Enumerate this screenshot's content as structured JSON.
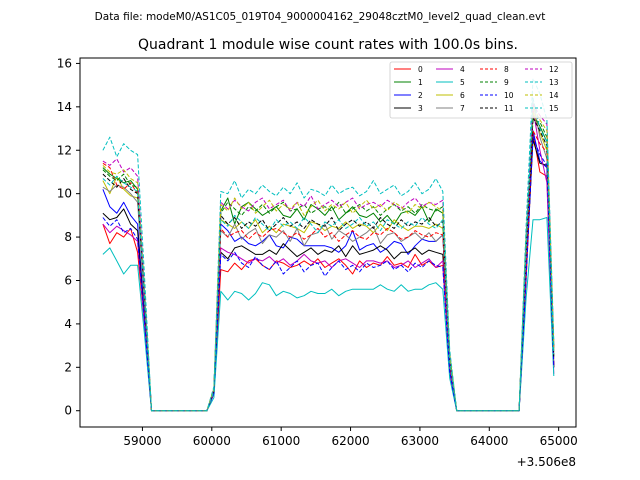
{
  "header_note": "Data file: modeM0/AS1C05_019T04_9000004162_29048cztM0_level2_quad_clean.evt",
  "chart_data": {
    "type": "line",
    "title": "Quadrant 1 module wise count rates with 100.0s bins.",
    "xlabel": "",
    "ylabel": "",
    "x_offset_label": "+3.506e8",
    "xlim": [
      58100,
      65250
    ],
    "ylim": [
      -0.75,
      16.25
    ],
    "x_ticks": [
      59000,
      60000,
      61000,
      62000,
      63000,
      64000,
      65000
    ],
    "x_tick_labels": [
      "59000",
      "60000",
      "61000",
      "62000",
      "63000",
      "64000",
      "65000"
    ],
    "y_ticks": [
      0,
      2,
      4,
      6,
      8,
      10,
      12,
      14,
      16
    ],
    "y_tick_labels": [
      "0",
      "2",
      "4",
      "6",
      "8",
      "10",
      "12",
      "14",
      "16"
    ],
    "grid": false,
    "legend_position": "top-right",
    "x": [
      58430,
      58530,
      58630,
      58730,
      58830,
      58930,
      59030,
      59130,
      59230,
      59330,
      59430,
      59530,
      59630,
      59730,
      59830,
      59930,
      60030,
      60130,
      60230,
      60330,
      60430,
      60530,
      60630,
      60730,
      60830,
      60930,
      61030,
      61130,
      61230,
      61330,
      61430,
      61530,
      61630,
      61730,
      61830,
      61930,
      62030,
      62130,
      62230,
      62330,
      62430,
      62530,
      62630,
      62730,
      62830,
      62930,
      63030,
      63130,
      63230,
      63330,
      63430,
      63530,
      63630,
      63730,
      63830,
      63930,
      64030,
      64130,
      64230,
      64330,
      64430,
      64530,
      64630,
      64730,
      64830,
      64930
    ],
    "series": [
      {
        "name": "0",
        "color": "#ff0000",
        "dash": false,
        "values": [
          8.6,
          7.7,
          8.2,
          8.0,
          8.4,
          7.3,
          4.0,
          0.0,
          0.0,
          0.0,
          0.0,
          0.0,
          0.0,
          0.0,
          0.0,
          0.0,
          0.8,
          6.5,
          6.4,
          6.8,
          6.5,
          6.9,
          7.0,
          6.7,
          6.5,
          6.9,
          6.8,
          6.6,
          6.7,
          6.9,
          6.7,
          7.0,
          6.6,
          6.8,
          7.0,
          6.7,
          6.3,
          6.9,
          6.6,
          6.8,
          6.7,
          7.1,
          6.7,
          6.8,
          6.6,
          7.2,
          6.7,
          6.9,
          6.6,
          6.7,
          1.8,
          0.0,
          0.0,
          0.0,
          0.0,
          0.0,
          0.0,
          0.0,
          0.0,
          0.0,
          0.0,
          6.0,
          12.8,
          11.0,
          10.8,
          2.0
        ]
      },
      {
        "name": "1",
        "color": "#008000",
        "dash": false,
        "values": [
          11.2,
          10.9,
          10.7,
          10.5,
          10.6,
          10.2,
          5.5,
          0.0,
          0.0,
          0.0,
          0.0,
          0.0,
          0.0,
          0.0,
          0.0,
          0.0,
          1.0,
          9.2,
          9.8,
          8.6,
          9.4,
          9.6,
          9.3,
          9.0,
          9.2,
          9.4,
          9.0,
          8.9,
          9.3,
          8.8,
          9.5,
          9.3,
          9.0,
          9.4,
          8.8,
          9.1,
          9.4,
          9.0,
          8.9,
          9.1,
          8.7,
          9.0,
          8.6,
          9.1,
          9.2,
          9.0,
          9.4,
          8.7,
          9.3,
          9.1,
          2.6,
          0.0,
          0.0,
          0.0,
          0.0,
          0.0,
          0.0,
          0.0,
          0.0,
          0.0,
          0.0,
          8.0,
          13.6,
          13.1,
          12.4,
          3.0
        ]
      },
      {
        "name": "2",
        "color": "#0000ff",
        "dash": false,
        "values": [
          10.2,
          9.4,
          9.1,
          9.6,
          9.0,
          8.6,
          4.4,
          0.0,
          0.0,
          0.0,
          0.0,
          0.0,
          0.0,
          0.0,
          0.0,
          0.0,
          0.9,
          8.6,
          8.3,
          7.8,
          8.0,
          7.7,
          7.6,
          7.8,
          8.1,
          7.6,
          7.5,
          8.0,
          7.9,
          7.6,
          7.6,
          7.6,
          7.6,
          7.5,
          7.3,
          7.6,
          8.3,
          7.4,
          7.6,
          7.7,
          7.3,
          7.5,
          7.8,
          7.7,
          7.2,
          7.6,
          7.9,
          7.8,
          7.8,
          8.1,
          2.0,
          0.0,
          0.0,
          0.0,
          0.0,
          0.0,
          0.0,
          0.0,
          0.0,
          0.0,
          0.0,
          6.8,
          12.9,
          11.5,
          11.2,
          2.1
        ]
      },
      {
        "name": "3",
        "color": "#000000",
        "dash": false,
        "values": [
          9.1,
          8.8,
          8.9,
          9.3,
          8.6,
          8.3,
          4.2,
          0.0,
          0.0,
          0.0,
          0.0,
          0.0,
          0.0,
          0.0,
          0.0,
          0.0,
          0.8,
          7.3,
          7.0,
          7.5,
          7.6,
          7.4,
          7.2,
          7.2,
          7.4,
          7.2,
          7.7,
          7.4,
          7.1,
          7.3,
          7.5,
          7.2,
          7.4,
          7.3,
          7.6,
          7.1,
          7.6,
          7.2,
          7.3,
          7.4,
          7.6,
          7.4,
          7.0,
          7.3,
          7.3,
          7.5,
          7.2,
          7.4,
          7.3,
          7.2,
          1.9,
          0.0,
          0.0,
          0.0,
          0.0,
          0.0,
          0.0,
          0.0,
          0.0,
          0.0,
          0.0,
          6.4,
          12.5,
          11.4,
          11.3,
          2.0
        ]
      },
      {
        "name": "4",
        "color": "#bf00bf",
        "dash": false,
        "values": [
          8.6,
          8.2,
          8.5,
          8.3,
          8.1,
          7.8,
          4.0,
          0.0,
          0.0,
          0.0,
          0.0,
          0.0,
          0.0,
          0.0,
          0.0,
          0.0,
          0.8,
          7.5,
          7.3,
          7.2,
          7.0,
          6.8,
          7.0,
          6.9,
          7.1,
          6.8,
          7.0,
          6.7,
          6.9,
          7.2,
          6.9,
          6.8,
          6.9,
          6.6,
          6.9,
          7.0,
          6.8,
          6.6,
          6.9,
          6.9,
          6.8,
          6.9,
          6.6,
          6.7,
          6.9,
          6.6,
          6.8,
          7.0,
          6.6,
          6.9,
          1.8,
          0.0,
          0.0,
          0.0,
          0.0,
          0.0,
          0.0,
          0.0,
          0.0,
          0.0,
          0.0,
          6.2,
          13.9,
          12.0,
          10.5,
          1.7
        ]
      },
      {
        "name": "5",
        "color": "#00bfbf",
        "dash": false,
        "values": [
          7.2,
          7.5,
          6.9,
          6.3,
          6.7,
          6.7,
          3.5,
          0.0,
          0.0,
          0.0,
          0.0,
          0.0,
          0.0,
          0.0,
          0.0,
          0.0,
          0.6,
          5.5,
          5.1,
          5.5,
          5.4,
          5.1,
          5.4,
          5.9,
          5.8,
          5.3,
          5.5,
          5.4,
          5.2,
          5.3,
          5.5,
          5.4,
          5.4,
          5.6,
          5.3,
          5.5,
          5.6,
          5.6,
          5.6,
          5.6,
          5.8,
          5.6,
          5.5,
          5.8,
          5.5,
          5.6,
          5.6,
          5.8,
          5.9,
          5.6,
          1.5,
          0.0,
          0.0,
          0.0,
          0.0,
          0.0,
          0.0,
          0.0,
          0.0,
          0.0,
          0.0,
          5.2,
          8.8,
          8.8,
          8.9,
          1.6
        ]
      },
      {
        "name": "6",
        "color": "#bfbf00",
        "dash": false,
        "values": [
          10.6,
          10.0,
          10.8,
          10.2,
          9.9,
          9.8,
          5.2,
          0.0,
          0.0,
          0.0,
          0.0,
          0.0,
          0.0,
          0.0,
          0.0,
          0.0,
          0.9,
          8.8,
          8.6,
          8.4,
          8.7,
          8.4,
          8.8,
          8.2,
          8.5,
          8.2,
          8.6,
          8.5,
          8.4,
          8.2,
          8.7,
          8.6,
          8.3,
          8.5,
          8.4,
          8.7,
          8.4,
          8.6,
          8.5,
          8.2,
          8.6,
          8.3,
          8.8,
          8.5,
          8.3,
          8.5,
          8.5,
          8.4,
          8.6,
          8.4,
          2.3,
          0.0,
          0.0,
          0.0,
          0.0,
          0.0,
          0.0,
          0.0,
          0.0,
          0.0,
          0.0,
          7.6,
          13.8,
          12.8,
          12.0,
          2.6
        ]
      },
      {
        "name": "7",
        "color": "#808080",
        "dash": false,
        "values": [
          10.3,
          10.1,
          10.4,
          10.3,
          10.0,
          9.6,
          5.0,
          0.0,
          0.0,
          0.0,
          0.0,
          0.0,
          0.0,
          0.0,
          0.0,
          0.0,
          0.9,
          8.3,
          8.0,
          8.6,
          7.9,
          8.2,
          8.4,
          7.7,
          8.1,
          8.0,
          8.3,
          7.8,
          8.4,
          7.6,
          8.1,
          8.2,
          8.6,
          7.9,
          8.3,
          8.1,
          7.8,
          8.0,
          8.2,
          8.5,
          7.7,
          8.1,
          8.2,
          7.8,
          8.0,
          8.2,
          7.9,
          8.2,
          7.8,
          8.1,
          2.2,
          0.0,
          0.0,
          0.0,
          0.0,
          0.0,
          0.0,
          0.0,
          0.0,
          0.0,
          0.0,
          7.2,
          14.2,
          12.6,
          11.6,
          2.4
        ]
      },
      {
        "name": "8",
        "color": "#ff0000",
        "dash": true,
        "values": [
          11.4,
          11.2,
          10.4,
          10.2,
          10.5,
          10.0,
          5.2,
          0.0,
          0.0,
          0.0,
          0.0,
          0.0,
          0.0,
          0.0,
          0.0,
          0.0,
          0.9,
          8.4,
          8.0,
          8.2,
          8.3,
          7.9,
          8.2,
          8.0,
          8.3,
          8.4,
          8.2,
          8.0,
          8.2,
          7.9,
          8.1,
          8.4,
          8.0,
          8.2,
          7.8,
          8.1,
          8.3,
          8.0,
          7.9,
          8.2,
          8.1,
          8.4,
          8.2,
          7.9,
          8.0,
          8.3,
          8.1,
          8.0,
          8.2,
          8.1,
          2.2,
          0.0,
          0.0,
          0.0,
          0.0,
          0.0,
          0.0,
          0.0,
          0.0,
          0.0,
          0.0,
          6.6,
          12.9,
          12.3,
          11.9,
          2.1
        ]
      },
      {
        "name": "9",
        "color": "#008000",
        "dash": true,
        "values": [
          11.1,
          10.8,
          10.6,
          10.9,
          10.4,
          10.3,
          5.4,
          0.0,
          0.0,
          0.0,
          0.0,
          0.0,
          0.0,
          0.0,
          0.0,
          0.0,
          1.0,
          9.1,
          9.6,
          9.3,
          9.0,
          9.4,
          9.2,
          9.5,
          9.1,
          9.4,
          9.6,
          9.2,
          9.3,
          9.5,
          9.1,
          9.3,
          9.4,
          9.2,
          9.6,
          9.1,
          9.3,
          9.5,
          9.2,
          9.4,
          9.0,
          9.3,
          9.5,
          9.2,
          9.4,
          9.1,
          9.5,
          9.3,
          9.2,
          9.4,
          2.5,
          0.0,
          0.0,
          0.0,
          0.0,
          0.0,
          0.0,
          0.0,
          0.0,
          0.0,
          0.0,
          7.9,
          13.4,
          13.3,
          12.6,
          2.8
        ]
      },
      {
        "name": "10",
        "color": "#0000ff",
        "dash": true,
        "values": [
          8.9,
          8.5,
          8.8,
          8.2,
          8.4,
          7.9,
          4.1,
          0.0,
          0.0,
          0.0,
          0.0,
          0.0,
          0.0,
          0.0,
          0.0,
          0.0,
          0.8,
          7.2,
          6.9,
          7.3,
          6.8,
          6.6,
          7.1,
          6.7,
          6.5,
          6.9,
          6.3,
          6.6,
          6.9,
          6.4,
          6.7,
          6.8,
          6.2,
          6.6,
          6.9,
          6.5,
          6.7,
          6.4,
          6.8,
          6.6,
          6.7,
          6.9,
          6.5,
          6.7,
          6.4,
          6.8,
          6.6,
          6.9,
          6.7,
          6.6,
          1.8,
          0.0,
          0.0,
          0.0,
          0.0,
          0.0,
          0.0,
          0.0,
          0.0,
          0.0,
          0.0,
          6.1,
          12.6,
          11.8,
          11.3,
          2.0
        ]
      },
      {
        "name": "11",
        "color": "#000000",
        "dash": true,
        "values": [
          10.9,
          10.6,
          10.3,
          10.7,
          10.2,
          10.0,
          5.3,
          0.0,
          0.0,
          0.0,
          0.0,
          0.0,
          0.0,
          0.0,
          0.0,
          0.0,
          0.9,
          9.0,
          8.6,
          8.9,
          8.4,
          8.7,
          8.5,
          8.8,
          8.3,
          8.6,
          8.9,
          8.5,
          8.7,
          8.4,
          8.8,
          8.6,
          8.5,
          8.9,
          8.3,
          8.6,
          8.8,
          8.5,
          8.7,
          8.4,
          8.9,
          8.6,
          8.4,
          8.8,
          8.5,
          8.7,
          8.6,
          8.9,
          8.5,
          8.7,
          2.4,
          0.0,
          0.0,
          0.0,
          0.0,
          0.0,
          0.0,
          0.0,
          0.0,
          0.0,
          0.0,
          7.4,
          13.5,
          12.9,
          12.2,
          2.5
        ]
      },
      {
        "name": "12",
        "color": "#bf00bf",
        "dash": true,
        "values": [
          11.5,
          11.3,
          11.6,
          11.0,
          11.2,
          10.8,
          5.6,
          0.0,
          0.0,
          0.0,
          0.0,
          0.0,
          0.0,
          0.0,
          0.0,
          0.0,
          1.0,
          9.6,
          9.3,
          9.7,
          9.4,
          9.2,
          9.6,
          9.8,
          9.3,
          9.5,
          9.7,
          9.2,
          9.6,
          9.4,
          9.9,
          9.3,
          9.5,
          9.7,
          9.4,
          9.6,
          9.8,
          9.3,
          9.5,
          9.6,
          9.4,
          9.7,
          9.5,
          9.3,
          9.6,
          9.8,
          9.4,
          9.6,
          9.5,
          9.7,
          2.6,
          0.0,
          0.0,
          0.0,
          0.0,
          0.0,
          0.0,
          0.0,
          0.0,
          0.0,
          0.0,
          8.1,
          14.1,
          13.6,
          13.2,
          2.9
        ]
      },
      {
        "name": "13",
        "color": "#00bfbf",
        "dash": true,
        "values": [
          12.0,
          12.6,
          11.7,
          12.3,
          12.0,
          11.8,
          6.2,
          0.0,
          0.0,
          0.0,
          0.0,
          0.0,
          0.0,
          0.0,
          0.0,
          0.0,
          1.1,
          10.1,
          10.0,
          10.6,
          9.8,
          10.2,
          10.0,
          10.4,
          10.1,
          9.9,
          10.3,
          10.0,
          10.5,
          9.8,
          10.2,
          10.1,
          9.9,
          10.4,
          10.0,
          10.2,
          10.3,
          9.9,
          10.1,
          10.6,
          10.0,
          10.2,
          10.4,
          9.9,
          10.1,
          10.5,
          10.0,
          10.2,
          10.7,
          10.1,
          2.8,
          0.0,
          0.0,
          0.0,
          0.0,
          0.0,
          0.0,
          0.0,
          0.0,
          0.0,
          0.0,
          8.5,
          15.3,
          14.6,
          13.4,
          3.2
        ]
      },
      {
        "name": "14",
        "color": "#bfbf00",
        "dash": true,
        "values": [
          11.3,
          11.0,
          10.9,
          11.1,
          10.7,
          10.5,
          5.5,
          0.0,
          0.0,
          0.0,
          0.0,
          0.0,
          0.0,
          0.0,
          0.0,
          0.0,
          1.0,
          9.5,
          9.2,
          9.8,
          9.3,
          9.6,
          9.1,
          9.4,
          9.7,
          9.2,
          9.5,
          9.3,
          9.6,
          9.0,
          9.4,
          9.7,
          9.2,
          9.5,
          9.3,
          9.6,
          9.1,
          9.4,
          9.7,
          9.3,
          9.5,
          9.2,
          9.6,
          9.4,
          9.1,
          9.5,
          9.3,
          9.6,
          9.4,
          9.2,
          2.5,
          0.0,
          0.0,
          0.0,
          0.0,
          0.0,
          0.0,
          0.0,
          0.0,
          0.0,
          0.0,
          7.8,
          14.0,
          13.4,
          12.9,
          2.8
        ]
      },
      {
        "name": "15",
        "color": "#00bfbf",
        "dash": true,
        "values": [
          10.7,
          10.4,
          10.8,
          10.5,
          10.3,
          10.1,
          5.3,
          0.0,
          0.0,
          0.0,
          0.0,
          0.0,
          0.0,
          0.0,
          0.0,
          0.0,
          0.9,
          8.8,
          8.5,
          9.0,
          8.7,
          8.4,
          8.9,
          8.6,
          8.3,
          8.8,
          8.5,
          8.7,
          8.4,
          8.9,
          8.6,
          8.2,
          8.7,
          8.5,
          8.8,
          8.4,
          8.6,
          8.9,
          8.5,
          8.7,
          8.3,
          8.8,
          8.6,
          8.4,
          8.7,
          8.5,
          8.9,
          8.6,
          8.4,
          8.8,
          2.3,
          0.0,
          0.0,
          0.0,
          0.0,
          0.0,
          0.0,
          0.0,
          0.0,
          0.0,
          0.0,
          7.5,
          14.4,
          13.0,
          12.4,
          2.6
        ]
      }
    ]
  }
}
